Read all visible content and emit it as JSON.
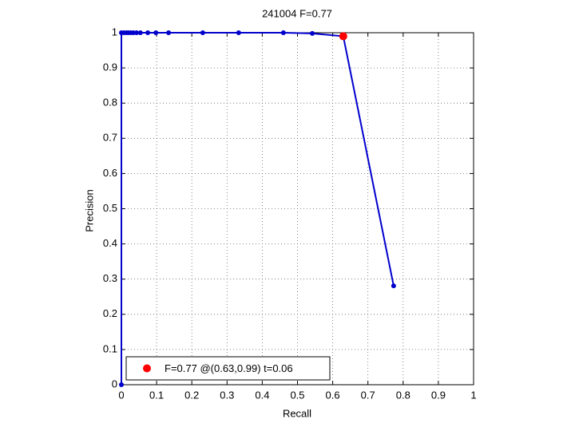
{
  "chart_data": {
    "type": "line",
    "title": "241004 F=0.77",
    "xlabel": "Recall",
    "ylabel": "Precision",
    "xlim": [
      0,
      1
    ],
    "ylim": [
      0,
      1
    ],
    "xticks": [
      0,
      0.1,
      0.2,
      0.3,
      0.4,
      0.5,
      0.6,
      0.7,
      0.8,
      0.9,
      1
    ],
    "yticks": [
      0,
      0.1,
      0.2,
      0.3,
      0.4,
      0.5,
      0.6,
      0.7,
      0.8,
      0.9,
      1
    ],
    "grid": true,
    "legend_position": "lower left",
    "series": [
      {
        "color": "#0000cc",
        "marker": "dot",
        "x": [
          0,
          0,
          0.007,
          0.014,
          0.02,
          0.027,
          0.034,
          0.043,
          0.054,
          0.075,
          0.098,
          0.134,
          0.231,
          0.333,
          0.46,
          0.542,
          0.63,
          0.773
        ],
        "values": [
          0,
          1,
          1,
          1,
          1,
          1,
          1,
          1,
          1,
          1,
          1,
          1,
          1,
          1,
          1,
          0.998,
          0.99,
          0.281
        ]
      },
      {
        "name": "F=0.77 @(0.63,0.99) t=0.06",
        "color": "#ff0000",
        "marker": "big-dot",
        "x": [
          0.63
        ],
        "values": [
          0.99
        ]
      }
    ]
  }
}
